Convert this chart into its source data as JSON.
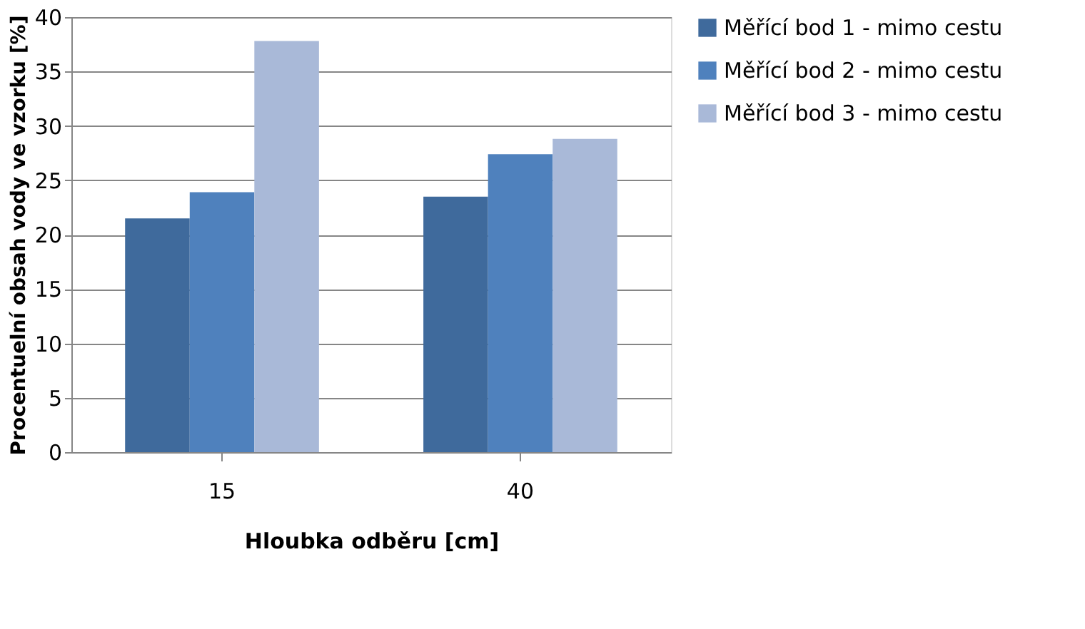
{
  "chart_data": {
    "type": "bar",
    "xlabel": "Hloubka odběru [cm]",
    "ylabel": "Procentuelní obsah vody ve vzorku [%]",
    "categories": [
      "15",
      "40"
    ],
    "series": [
      {
        "name": "Měřící bod 1 - mimo cestu",
        "color": "#3f6a9c",
        "values": [
          21.5,
          23.5
        ]
      },
      {
        "name": "Měřící bod 2 - mimo cestu",
        "color": "#4f81bd",
        "values": [
          23.9,
          27.4
        ]
      },
      {
        "name": "Měřící bod 3 - mimo cestu",
        "color": "#a9b9d8",
        "values": [
          37.8,
          28.8
        ]
      }
    ],
    "ylim": [
      0,
      40
    ],
    "yticks": [
      0,
      5,
      10,
      15,
      20,
      25,
      30,
      35,
      40
    ],
    "grid": "y",
    "legend": "right"
  }
}
